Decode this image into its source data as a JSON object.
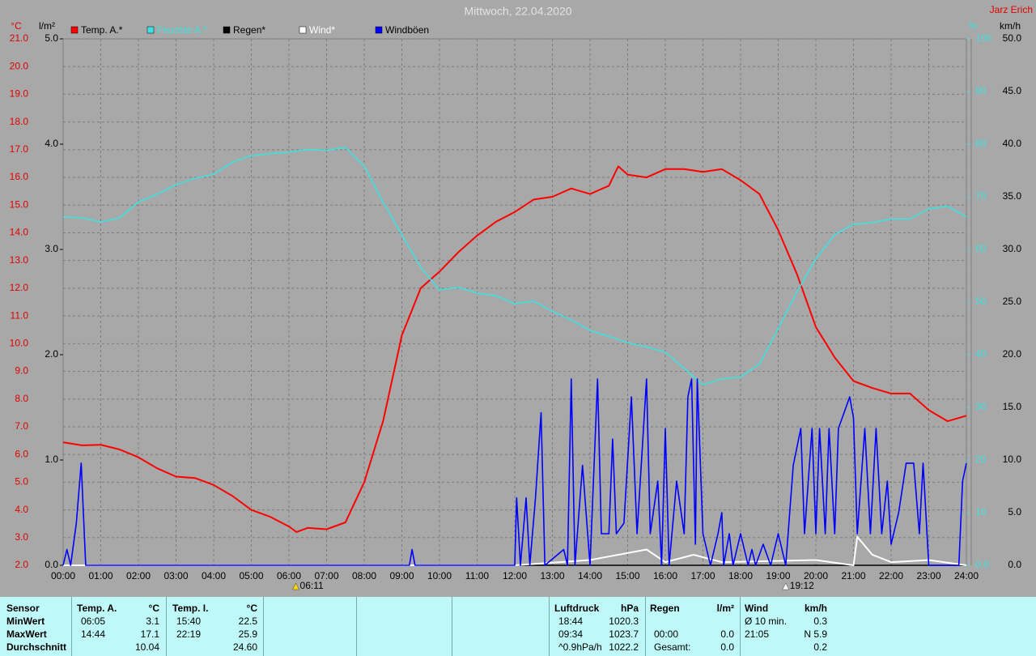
{
  "chart_data": {
    "type": "line",
    "title": "Mittwoch, 22.04.2020",
    "author": "Jarz Erich",
    "y_label": "°C",
    "y2_label": "l/m²",
    "y3_label": "%",
    "y4_label": "km/h",
    "xlim": [
      0,
      24
    ],
    "xticks": [
      {
        "value": 0,
        "label": "00:00"
      },
      {
        "value": 1,
        "label": "01:00"
      },
      {
        "value": 2,
        "label": "02:00"
      },
      {
        "value": 3,
        "label": "03:00"
      },
      {
        "value": 4,
        "label": "04:00"
      },
      {
        "value": 5,
        "label": "05:00"
      },
      {
        "value": 6,
        "label": "06:00"
      },
      {
        "value": 7,
        "label": "07:00"
      },
      {
        "value": 8,
        "label": "08:00"
      },
      {
        "value": 9,
        "label": "09:00"
      },
      {
        "value": 10,
        "label": "10:00"
      },
      {
        "value": 11,
        "label": "11:00"
      },
      {
        "value": 12,
        "label": "12:00"
      },
      {
        "value": 13,
        "label": "13:00"
      },
      {
        "value": 14,
        "label": "14:00"
      },
      {
        "value": 15,
        "label": "15:00"
      },
      {
        "value": 16,
        "label": "16:00"
      },
      {
        "value": 17,
        "label": "17:00"
      },
      {
        "value": 18,
        "label": "18:00"
      },
      {
        "value": 19,
        "label": "19:00"
      },
      {
        "value": 20,
        "label": "20:00"
      },
      {
        "value": 21,
        "label": "21:00"
      },
      {
        "value": 22,
        "label": "22:00"
      },
      {
        "value": 23,
        "label": "23:00"
      },
      {
        "value": 24,
        "label": "24:00"
      }
    ],
    "ylim": [
      2,
      21
    ],
    "yticks": [
      {
        "value": 2,
        "label": "2.0"
      },
      {
        "value": 3,
        "label": "3.0"
      },
      {
        "value": 4,
        "label": "4.0"
      },
      {
        "value": 5,
        "label": "5.0"
      },
      {
        "value": 6,
        "label": "6.0"
      },
      {
        "value": 7,
        "label": "7.0"
      },
      {
        "value": 8,
        "label": "8.0"
      },
      {
        "value": 9,
        "label": "9.0"
      },
      {
        "value": 10,
        "label": "10.0"
      },
      {
        "value": 11,
        "label": "11.0"
      },
      {
        "value": 12,
        "label": "12.0"
      },
      {
        "value": 13,
        "label": "13.0"
      },
      {
        "value": 14,
        "label": "14.0"
      },
      {
        "value": 15,
        "label": "15.0"
      },
      {
        "value": 16,
        "label": "16.0"
      },
      {
        "value": 17,
        "label": "17.0"
      },
      {
        "value": 18,
        "label": "18.0"
      },
      {
        "value": 19,
        "label": "19.0"
      },
      {
        "value": 20,
        "label": "20.0"
      },
      {
        "value": 21,
        "label": "21.0"
      }
    ],
    "y2lim": [
      0,
      5
    ],
    "y2ticks": [
      {
        "value": 0,
        "label": "0.0"
      },
      {
        "value": 1,
        "label": "1.0"
      },
      {
        "value": 2,
        "label": "2.0"
      },
      {
        "value": 3,
        "label": "3.0"
      },
      {
        "value": 4,
        "label": "4.0"
      },
      {
        "value": 5,
        "label": "5.0"
      }
    ],
    "y3lim": [
      0,
      100
    ],
    "y3ticks": [
      {
        "value": 0,
        "label": "0.0"
      },
      10,
      20,
      30,
      40,
      50,
      60,
      70,
      80,
      90,
      100
    ],
    "y4lim": [
      0,
      50
    ],
    "y4ticks": [
      {
        "value": 0,
        "label": "0.0"
      },
      {
        "value": 5,
        "label": "5.0"
      },
      {
        "value": 10,
        "label": "10.0"
      },
      {
        "value": 15,
        "label": "15.0"
      },
      {
        "value": 20,
        "label": "20.0"
      },
      {
        "value": 25,
        "label": "25.0"
      },
      {
        "value": 30,
        "label": "30.0"
      },
      {
        "value": 35,
        "label": "35.0"
      },
      {
        "value": 40,
        "label": "40.0"
      },
      {
        "value": 45,
        "label": "45.0"
      },
      {
        "value": 50,
        "label": "50.0"
      }
    ],
    "grid": true,
    "series": [
      {
        "name": "Temp. A.*",
        "color": "#ff0000",
        "axis": "y",
        "x": [
          0,
          0.5,
          1,
          1.5,
          2,
          2.5,
          3,
          3.5,
          4,
          4.5,
          5,
          5.5,
          6,
          6.2,
          6.5,
          7,
          7.5,
          8,
          8.5,
          9,
          9.5,
          10,
          10.5,
          11,
          11.5,
          12,
          12.5,
          13,
          13.5,
          14,
          14.5,
          14.75,
          15,
          15.5,
          16,
          16.5,
          17,
          17.5,
          18,
          18.5,
          19,
          19.5,
          20,
          20.5,
          21,
          21.5,
          22,
          22.5,
          23,
          23.5,
          24
        ],
        "values": [
          6.44,
          6.33,
          6.35,
          6.18,
          5.9,
          5.5,
          5.2,
          5.15,
          4.9,
          4.5,
          4.0,
          3.75,
          3.4,
          3.2,
          3.35,
          3.3,
          3.55,
          5.0,
          7.2,
          10.3,
          12.0,
          12.6,
          13.3,
          13.9,
          14.4,
          14.75,
          15.2,
          15.3,
          15.6,
          15.4,
          15.7,
          16.4,
          16.1,
          16.0,
          16.3,
          16.3,
          16.2,
          16.3,
          15.9,
          15.4,
          14.1,
          12.5,
          10.6,
          9.5,
          8.65,
          8.4,
          8.2,
          8.2,
          7.6,
          7.2,
          7.4
        ]
      },
      {
        "name": "Feuchte A.*",
        "color": "#40e0e0",
        "axis": "y3",
        "x": [
          0,
          0.5,
          1,
          1.5,
          2,
          2.5,
          3,
          3.5,
          4,
          4.5,
          5,
          5.5,
          6,
          6.5,
          7,
          7.5,
          8,
          8.5,
          9,
          9.5,
          10,
          10.5,
          11,
          11.5,
          12,
          12.5,
          13,
          13.5,
          14,
          14.5,
          15,
          15.5,
          16,
          16.5,
          17,
          17.5,
          18,
          18.5,
          19,
          19.5,
          20,
          20.5,
          21,
          21.5,
          22,
          22.5,
          23,
          23.5,
          24
        ],
        "values": [
          66.2,
          66,
          65.2,
          66,
          69,
          70.5,
          72.3,
          73.5,
          74.3,
          76.6,
          77.8,
          78.2,
          78.5,
          79,
          78.8,
          79.4,
          75.8,
          69,
          62.8,
          56.6,
          52.3,
          52.8,
          51.7,
          51.2,
          49.7,
          50.2,
          48.2,
          46.6,
          44.6,
          43.5,
          42.3,
          41.5,
          40.5,
          37.4,
          34.3,
          35.4,
          35.8,
          38.2,
          45,
          52,
          58.2,
          62.8,
          64.8,
          65.1,
          65.8,
          65.8,
          67.7,
          68.2,
          66.2
        ]
      },
      {
        "name": "Regen*",
        "color": "#000000",
        "axis": "y2",
        "x": [
          0,
          24
        ],
        "values": [
          0,
          0
        ]
      },
      {
        "name": "Wind*",
        "color": "#ffffff",
        "axis": "y4",
        "x": [
          0,
          12,
          14,
          15.5,
          16,
          16.75,
          17.5,
          20,
          21,
          21.1,
          21.5,
          22,
          23,
          24
        ],
        "values": [
          0,
          0,
          0.5,
          1.5,
          0.3,
          1,
          0.3,
          0.5,
          0,
          2.7,
          1,
          0.3,
          0.5,
          0
        ]
      },
      {
        "name": "Windböen",
        "color": "#0000ff",
        "axis": "y4",
        "x": [
          0,
          0.1,
          0.2,
          0.35,
          0.48,
          0.6,
          9.2,
          9.27,
          9.35,
          12,
          12.05,
          12.15,
          12.3,
          12.4,
          12.55,
          12.7,
          12.8,
          13.3,
          13.4,
          13.5,
          13.6,
          13.8,
          14,
          14.2,
          14.3,
          14.5,
          14.6,
          14.7,
          14.9,
          15.1,
          15.25,
          15.5,
          15.6,
          15.8,
          15.9,
          16,
          16.1,
          16.3,
          16.5,
          16.6,
          16.7,
          16.8,
          16.85,
          17,
          17.2,
          17.4,
          17.5,
          17.55,
          17.7,
          17.8,
          18,
          18.2,
          18.3,
          18.4,
          18.6,
          18.8,
          19,
          19.2,
          19.4,
          19.6,
          19.7,
          19.9,
          20,
          20.1,
          20.25,
          20.35,
          20.5,
          20.6,
          20.75,
          20.9,
          21,
          21.1,
          21.3,
          21.45,
          21.6,
          21.75,
          21.9,
          22,
          22.2,
          22.4,
          22.6,
          22.75,
          22.85,
          23,
          23.8,
          23.9,
          24
        ],
        "values": [
          0,
          1.5,
          0,
          4,
          9.7,
          0,
          0,
          1.5,
          0,
          0,
          6.4,
          0,
          6.4,
          0,
          6.4,
          14.5,
          0,
          1.5,
          0,
          17.7,
          0,
          9.5,
          0,
          17.7,
          3,
          3,
          12,
          3,
          4,
          16,
          3,
          17.7,
          3,
          8,
          0,
          13,
          0,
          8,
          3,
          16,
          17.7,
          2,
          17.7,
          3,
          0,
          3,
          5,
          0,
          3,
          0,
          3,
          0,
          1.5,
          0,
          2,
          0,
          3,
          0,
          9.5,
          13,
          3,
          13,
          3,
          13,
          3,
          13,
          3,
          13,
          14.5,
          16,
          14,
          3,
          13,
          3,
          13,
          3,
          8,
          2,
          5,
          9.7,
          9.7,
          3,
          9.7,
          0,
          0,
          8,
          9.7
        ]
      }
    ],
    "annotations": [
      {
        "x": 6.1833,
        "label": "06:11"
      },
      {
        "x": 19.2,
        "label": "19:12"
      }
    ]
  },
  "table": {
    "headers": [
      "Sensor",
      "Temp. A.",
      "°C",
      "Temp. I.",
      "°C",
      "Luftdruck",
      "hPa",
      "Regen",
      "l/m²",
      "Wind",
      "km/h"
    ],
    "rows": [
      [
        "MinWert",
        "06:05",
        "3.1",
        "15:40",
        "22.5",
        "18:44",
        "1020.3",
        null,
        null,
        "Ø 10 min.",
        "0.3"
      ],
      [
        "MaxWert",
        "14:44",
        "17.1",
        "22:19",
        "25.9",
        "09:34",
        "1023.7",
        "00:00",
        "0.0",
        "21:05",
        "N 5.9"
      ],
      [
        "Durchschnitt",
        null,
        "10.04",
        null,
        "24.60",
        "^0.9hPa/h",
        "1022.2",
        "Gesamt:",
        "0.0",
        null,
        "0.2"
      ]
    ]
  }
}
